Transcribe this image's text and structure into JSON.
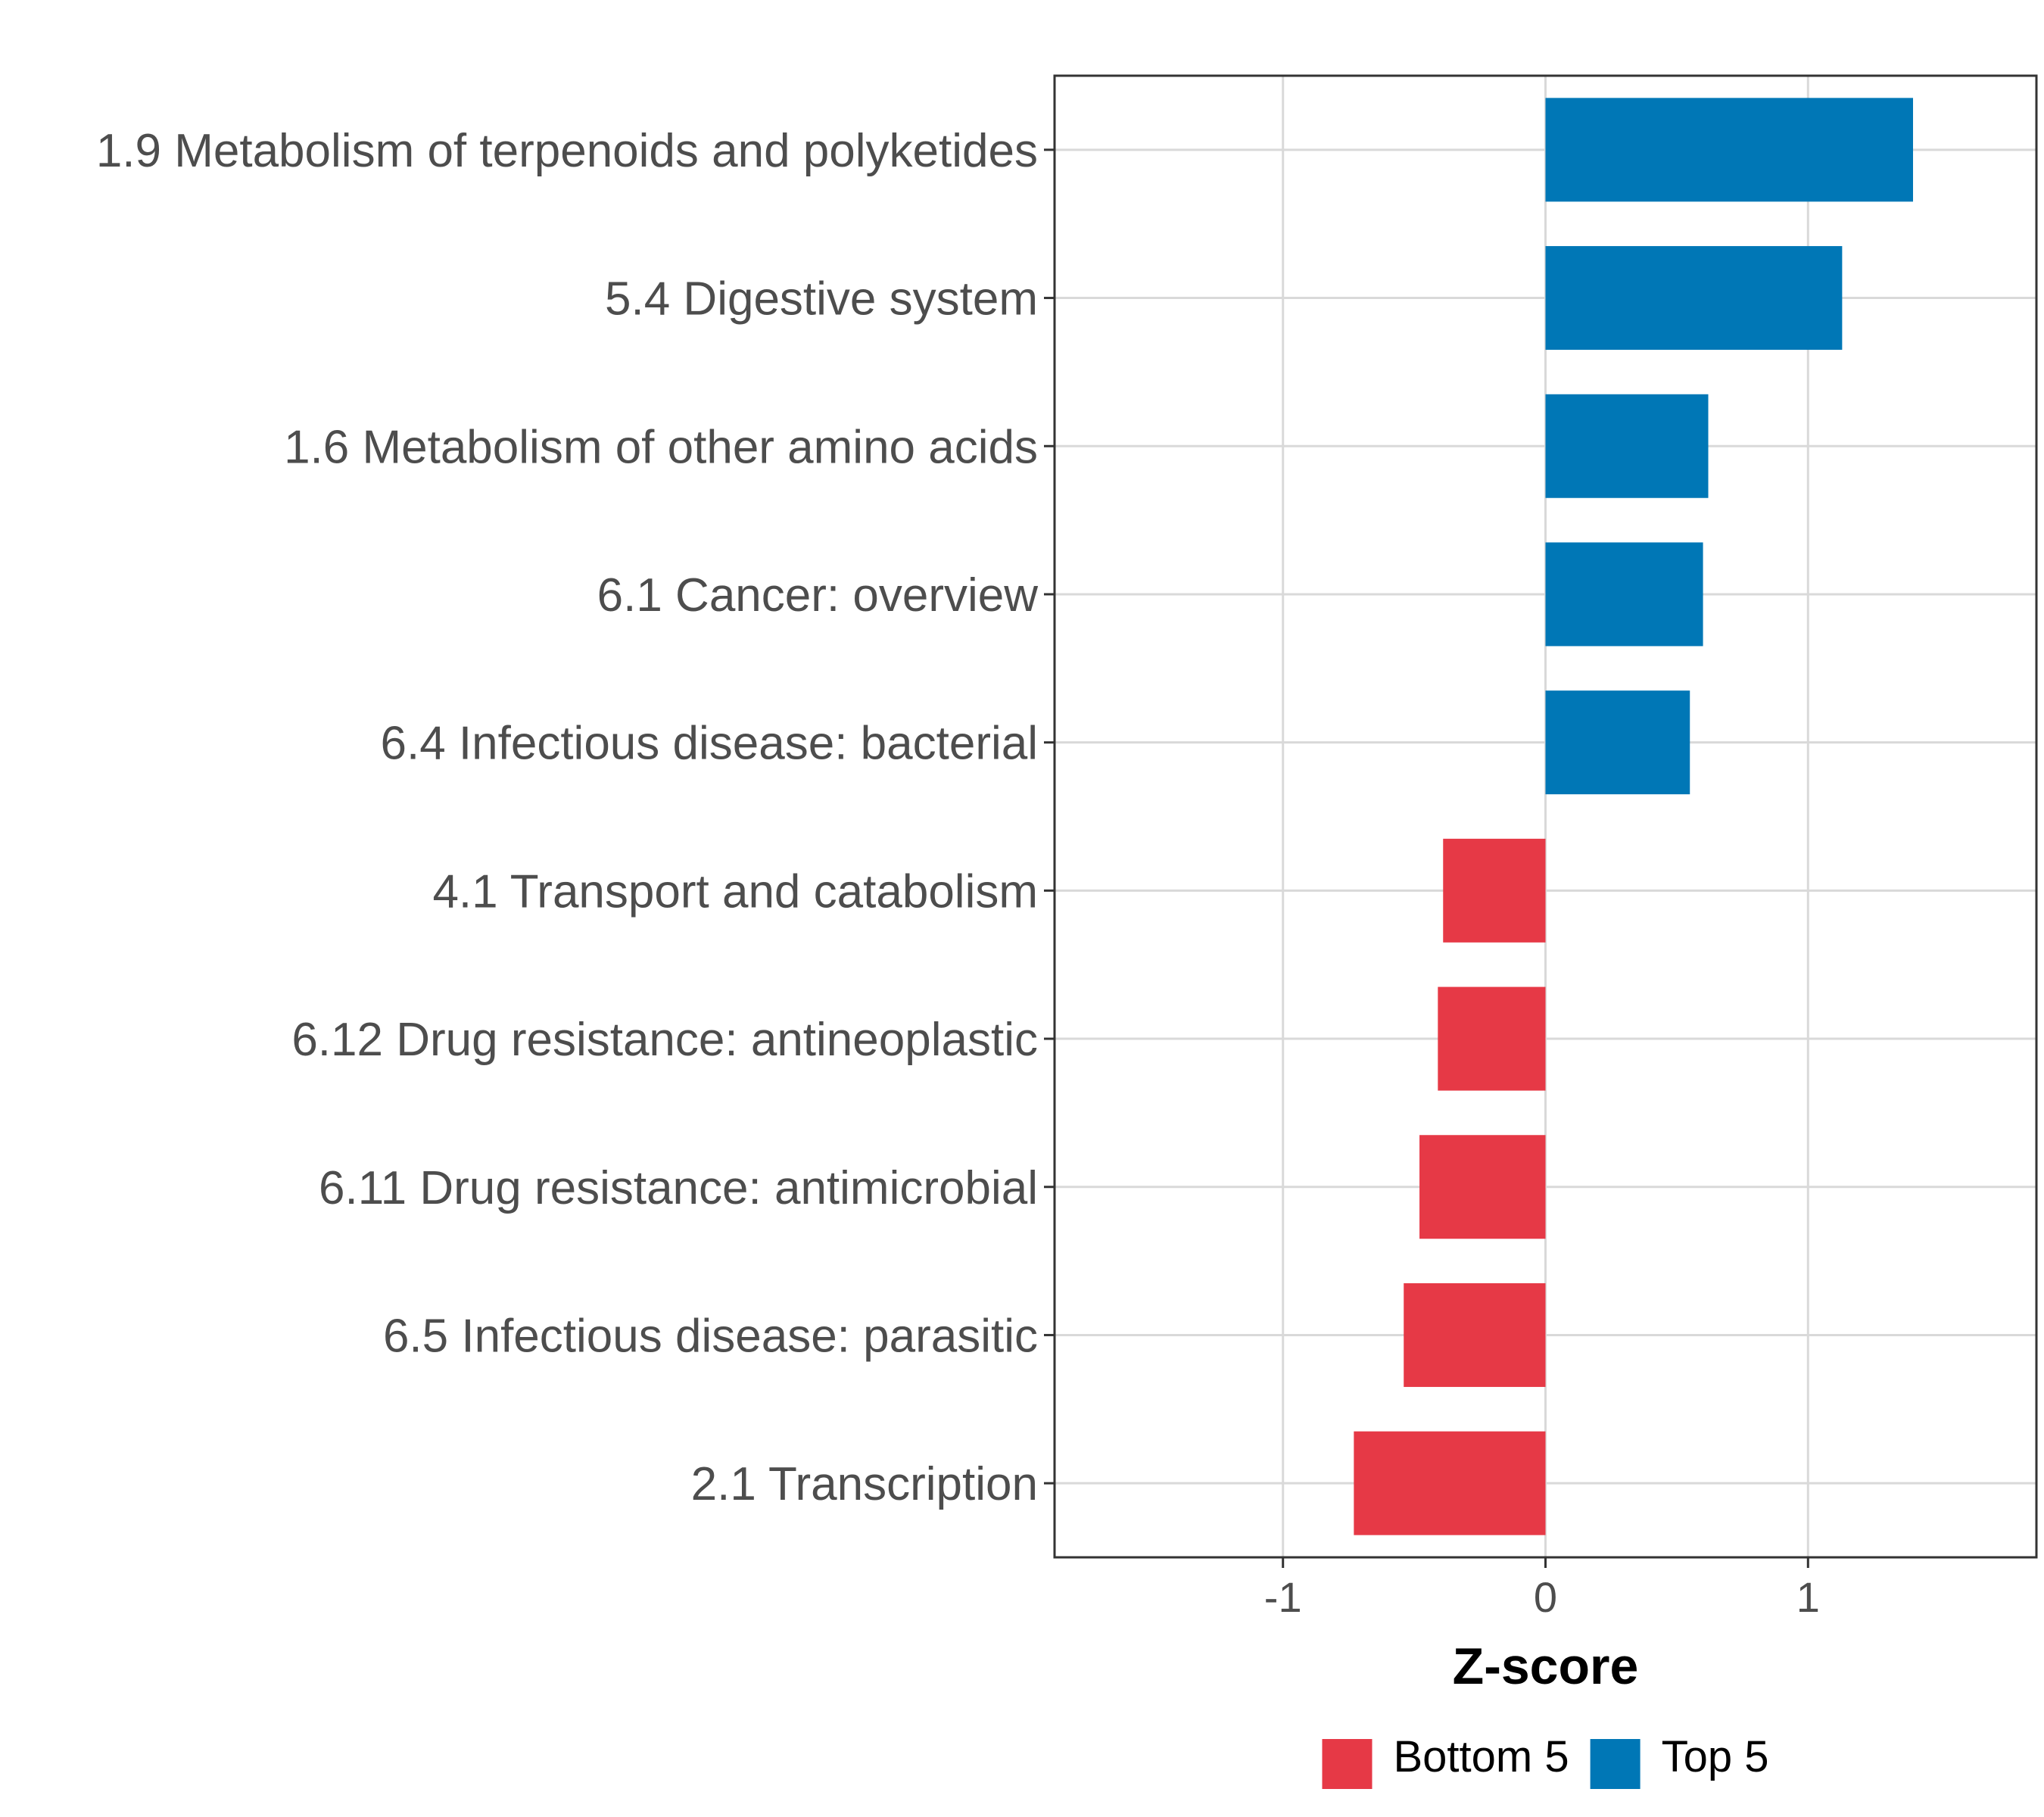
{
  "chart_data": {
    "type": "bar",
    "orientation": "horizontal",
    "title": "",
    "xlabel": "Z-score",
    "ylabel": "",
    "xlim": [
      -1.87,
      1.87
    ],
    "xticks": [
      -1,
      0,
      1
    ],
    "xtick_labels": [
      "-1",
      "0",
      "1"
    ],
    "grid": true,
    "legend_position": "bottom",
    "categories": [
      "1.9 Metabolism of terpenoids and polyketides",
      "5.4 Digestive system",
      "1.6 Metabolism of other amino acids",
      "6.1 Cancer: overview",
      "6.4 Infectious disease: bacterial",
      "4.1 Transport and catabolism",
      "6.12 Drug resistance: antineoplastic",
      "6.11 Drug resistance: antimicrobial",
      "6.5 Infectious disease: parasitic",
      "2.1 Transcription"
    ],
    "values": [
      1.4,
      1.13,
      0.62,
      0.6,
      0.55,
      -0.39,
      -0.41,
      -0.48,
      -0.54,
      -0.73
    ],
    "groups": [
      "Top 5",
      "Top 5",
      "Top 5",
      "Top 5",
      "Top 5",
      "Bottom 5",
      "Bottom 5",
      "Bottom 5",
      "Bottom 5",
      "Bottom 5"
    ],
    "legend": [
      {
        "name": "Bottom 5",
        "color": "#e63946"
      },
      {
        "name": "Top 5",
        "color": "#0077b6"
      }
    ]
  }
}
